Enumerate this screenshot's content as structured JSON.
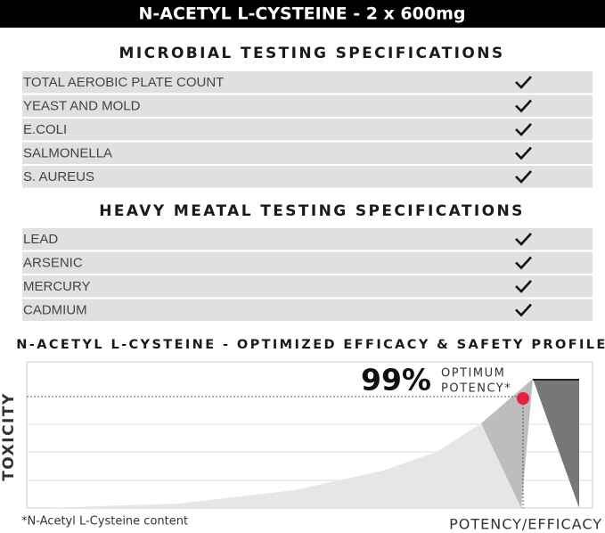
{
  "header": {
    "title": "N-ACETYL L-CYSTEINE - 2 x 600mg"
  },
  "sections": [
    {
      "title": "MICROBIAL TESTING SPECIFICATIONS",
      "rows": [
        "TOTAL AEROBIC PLATE COUNT",
        "YEAST AND MOLD",
        "E.COLI",
        "SALMONELLA",
        "S. AUREUS"
      ]
    },
    {
      "title": "HEAVY MEATAL TESTING SPECIFICATIONS",
      "rows": [
        "LEAD",
        "ARSENIC",
        "MERCURY",
        "CADMIUM"
      ]
    }
  ],
  "profile": {
    "title": "N-ACETYL L-CYSTEINE - OPTIMIZED EFFICACY & SAFETY PROFILE",
    "y_label": "TOXICITY",
    "x_label": "POTENCY/EFFICACY",
    "callout_value": "99%",
    "callout_line_1": "OPTIMUM",
    "callout_line_2": "POTENCY*",
    "footnote": "*N-Acetyl L-Cysteine content"
  }
}
